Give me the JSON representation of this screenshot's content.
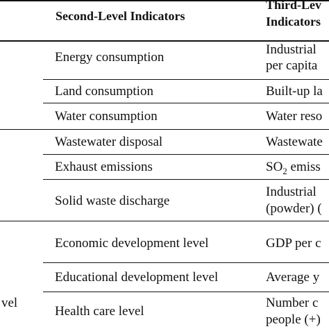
{
  "table": {
    "headers": {
      "second_level": "Second-Level Indicators",
      "third_level_line1": "Third-Lev",
      "third_level_line2": "Indicators"
    },
    "first_level_label": "vel",
    "rows": [
      {
        "second": "Energy consumption",
        "third_line1": "Industrial",
        "third_line2": "per capita"
      },
      {
        "second": "Land consumption",
        "third_line1": "Built-up la"
      },
      {
        "second": "Water consumption",
        "third_line1": "Water reso"
      },
      {
        "second": "Wastewater disposal",
        "third_line1": "Wastewate"
      },
      {
        "second": "Exhaust emissions",
        "third_prefix": "SO",
        "third_sub": "2",
        "third_suffix": " emiss"
      },
      {
        "second": "Solid waste discharge",
        "third_line1": "Industrial",
        "third_line2": "(powder) ("
      },
      {
        "second": "Economic development level",
        "third_line1": "GDP per c"
      },
      {
        "second": "Educational development level",
        "third_line1": "Average y"
      },
      {
        "second": "Health care level",
        "third_line1": "Number c",
        "third_line2": "people (+)"
      }
    ]
  }
}
